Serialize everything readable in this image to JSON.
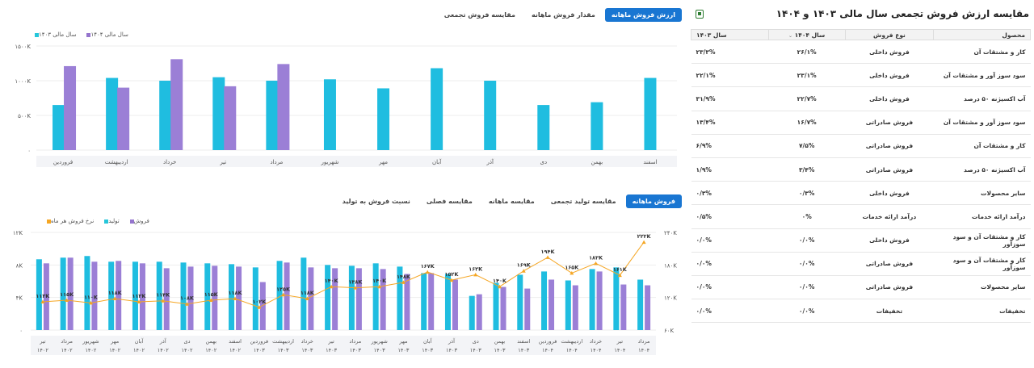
{
  "top_tabs": [
    "ارزش فروش ماهانه",
    "مقدار فروش ماهانه",
    "مقایسه فروش تجمعی"
  ],
  "top_tab_active": 0,
  "top_legend": [
    {
      "label": "سال مالی ۱۴۰۴",
      "color": "#9575cd"
    },
    {
      "label": "سال مالی ۱۴۰۳",
      "color": "#26c6da"
    }
  ],
  "top_chart": {
    "chart_data": {
      "type": "bar",
      "categories": [
        "اسفند",
        "بهمن",
        "دی",
        "آذر",
        "آبان",
        "مهر",
        "شهریور",
        "مرداد",
        "تیر",
        "خرداد",
        "اردیبهشت",
        "فروردین"
      ],
      "series": [
        {
          "name": "سال مالی ۱۴۰۳",
          "color": "#1fbde0",
          "values": [
            1040,
            690,
            650,
            1000,
            1180,
            890,
            1020,
            1000,
            1050,
            1000,
            1040,
            650
          ]
        },
        {
          "name": "سال مالی ۱۴۰۴",
          "color": "#9b7fd6",
          "values": [
            null,
            null,
            null,
            null,
            null,
            null,
            null,
            1240,
            920,
            1310,
            900,
            1210
          ]
        }
      ],
      "ylim": [
        0,
        1500
      ],
      "ticks": [
        0,
        500,
        1000,
        1500
      ],
      "tick_labels": [
        "۰",
        "۵۰۰K",
        "۱۰۰۰K",
        "۱۵۰۰K"
      ]
    }
  },
  "bottom_tabs": [
    "فروش ماهانه",
    "مقایسه تولید تجمعی",
    "مقایسه ماهانه",
    "مقایسه فصلی",
    "نسبت فروش به تولید"
  ],
  "bottom_tab_active": 0,
  "bottom_legend": [
    {
      "label": "فروش",
      "color": "#9575cd"
    },
    {
      "label": "تولید",
      "color": "#26c6da"
    },
    {
      "label": "نرخ فروش هر ماه",
      "color": "#f5a623"
    }
  ],
  "bottom_chart": {
    "chart_data": {
      "type": "bar",
      "categories": [
        [
          "تیر",
          "۱۴۰۲"
        ],
        [
          "مرداد",
          "۱۴۰۲"
        ],
        [
          "شهریور",
          "۱۴۰۲"
        ],
        [
          "مهر",
          "۱۴۰۲"
        ],
        [
          "آبان",
          "۱۴۰۲"
        ],
        [
          "آذر",
          "۱۴۰۲"
        ],
        [
          "دی",
          "۱۴۰۲"
        ],
        [
          "بهمن",
          "۱۴۰۲"
        ],
        [
          "اسفند",
          "۱۴۰۲"
        ],
        [
          "فروردین",
          "۱۴۰۳"
        ],
        [
          "اردیبهشت",
          "۱۴۰۳"
        ],
        [
          "خرداد",
          "۱۴۰۳"
        ],
        [
          "تیر",
          "۱۴۰۳"
        ],
        [
          "مرداد",
          "۱۴۰۳"
        ],
        [
          "شهریور",
          "۱۴۰۳"
        ],
        [
          "مهر",
          "۱۴۰۳"
        ],
        [
          "آبان",
          "۱۴۰۳"
        ],
        [
          "آذر",
          "۱۴۰۳"
        ],
        [
          "دی",
          "۱۴۰۳"
        ],
        [
          "بهمن",
          "۱۴۰۳"
        ],
        [
          "اسفند",
          "۱۴۰۳"
        ],
        [
          "فروردین",
          "۱۴۰۴"
        ],
        [
          "اردیبهشت",
          "۱۴۰۴"
        ],
        [
          "خرداد",
          "۱۴۰۴"
        ],
        [
          "تیر",
          "۱۴۰۴"
        ],
        [
          "مرداد",
          "۱۴۰۴"
        ]
      ],
      "series": [
        {
          "name": "تولید",
          "color": "#1fbde0",
          "values": [
            8.7,
            8.9,
            9.1,
            8.4,
            8.4,
            8.4,
            8.3,
            8.2,
            8.1,
            7.7,
            8.5,
            8.9,
            8.0,
            7.9,
            8.2,
            7.8,
            7.0,
            6.9,
            4.2,
            5.8,
            6.8,
            7.2,
            6.1,
            7.5,
            7.7,
            6.2
          ]
        },
        {
          "name": "فروش",
          "color": "#9b7fd6",
          "values": [
            8.2,
            8.9,
            8.4,
            8.5,
            8.2,
            7.6,
            7.8,
            7.9,
            7.8,
            5.9,
            8.3,
            7.7,
            7.6,
            7.6,
            7.5,
            6.9,
            7.0,
            6.2,
            4.4,
            5.3,
            5.1,
            6.2,
            5.5,
            7.2,
            5.6,
            5.5
          ]
        },
        {
          "name": "نرخ فروش هر ماه",
          "color": "#f5a623",
          "values": [
            112,
            115,
            110,
            118,
            112,
            114,
            108,
            115,
            118,
            102,
            125,
            118,
            140,
            138,
            140,
            148,
            167,
            152,
            162,
            140,
            169,
            194,
            165,
            183,
            161,
            222
          ]
        }
      ],
      "point_labels": [
        "۱۱۲K",
        "۱۱۵K",
        "۱۱۰K",
        "۱۱۸K",
        "۱۱۲K",
        "۱۱۴K",
        "۱۰۸K",
        "۱۱۵K",
        "۱۱۸K",
        "۱۰۲K",
        "۱۲۵K",
        "۱۱۸K",
        "۱۴۰K",
        "۱۳۸K",
        "۱۴۰K",
        "۱۴۸K",
        "۱۶۷K",
        "۱۵۲K",
        "۱۶۲K",
        "۱۴۰K",
        "۱۶۹K",
        "۱۹۴K",
        "۱۶۵K",
        "۱۸۳K",
        "۱۶۱K",
        "۲۲۲K"
      ],
      "ylim_left": [
        0,
        12
      ],
      "left_ticks": [
        0,
        4,
        8,
        12
      ],
      "left_tick_labels": [
        "۰",
        "۴K",
        "۸K",
        "۱۲K"
      ],
      "ylim_right": [
        60,
        240
      ],
      "right_ticks": [
        60,
        120,
        180,
        240
      ],
      "right_tick_labels": [
        "۶۰K",
        "۱۲۰K",
        "۱۸۰K",
        "۲۴۰K"
      ]
    }
  },
  "table": {
    "title": "مقایسه ارزش فروش تجمعی سال مالی ۱۴۰۳ و ۱۴۰۴",
    "headers": [
      "محصول",
      "نوع فروش",
      "سال ۱۴۰۴",
      "سال ۱۴۰۳"
    ],
    "sort_indicator": "⌄",
    "rows": [
      [
        "کار و مشتقات آن",
        "فروش داخلی",
        "۲۶/۱%",
        "۲۳/۳%"
      ],
      [
        "سود سوز آور و مشتقات آن",
        "فروش داخلی",
        "۲۳/۱%",
        "۲۲/۱%"
      ],
      [
        "آب اکسیژنه ۵۰ درصد",
        "فروش داخلی",
        "۲۲/۷%",
        "۳۱/۹%"
      ],
      [
        "سود سوز آور و مشتقات آن",
        "فروش صادراتی",
        "۱۶/۷%",
        "۱۳/۴%"
      ],
      [
        "کار و مشتقات آن",
        "فروش صادراتی",
        "۷/۵%",
        "۶/۹%"
      ],
      [
        "آب اکسیژنه ۵۰ درصد",
        "فروش صادراتی",
        "۳/۴%",
        "۱/۹%"
      ],
      [
        "سایر محصولات",
        "فروش داخلی",
        "۰/۳%",
        "۰/۳%"
      ],
      [
        "درآمد ارائه خدمات",
        "درآمد ارائه خدمات",
        "۰%",
        "۰/۵%"
      ],
      [
        "کار و مشتقات آن و سود سوزآور",
        "فروش داخلی",
        "۰/۰%",
        "۰/۰%"
      ],
      [
        "کار و مشتقات آن و سود سوزآور",
        "فروش صادراتی",
        "۰/۰%",
        "۰/۰%"
      ],
      [
        "سایر محصولات",
        "فروش صادراتی",
        "۰/۰%",
        "۰/۰%"
      ],
      [
        "تخفیفات",
        "تخفیفات",
        "۰/۰%",
        "۰/۰%"
      ]
    ]
  }
}
